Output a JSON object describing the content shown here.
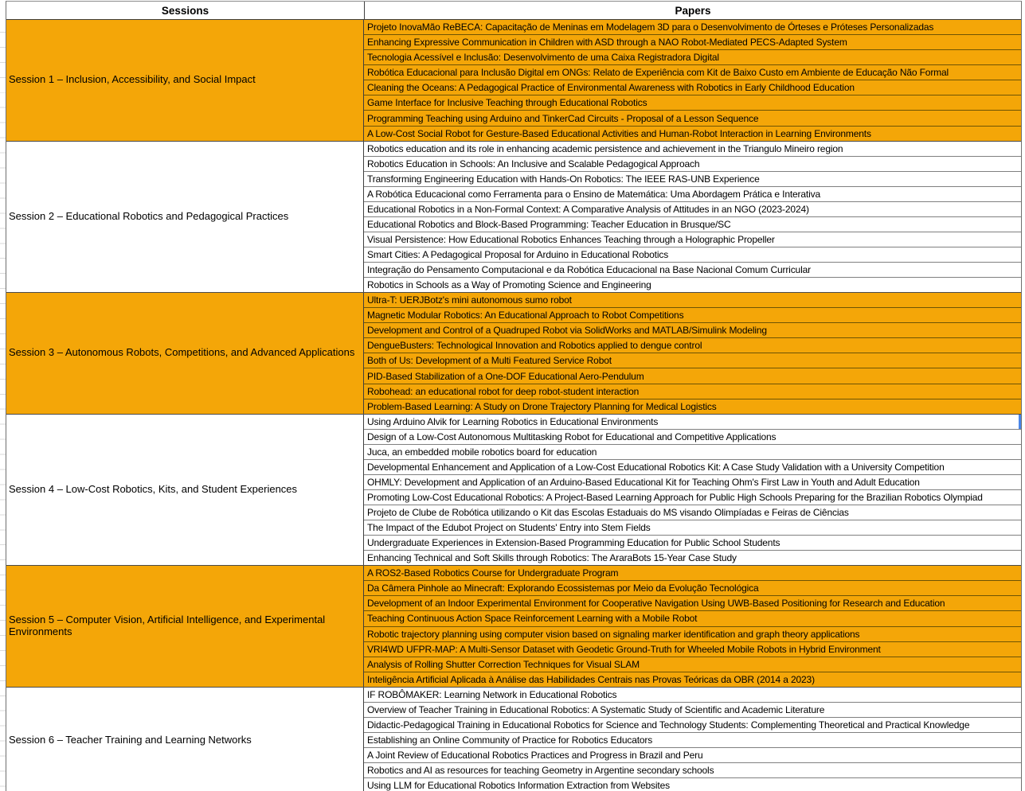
{
  "header": {
    "sessions_label": "Sessions",
    "papers_label": "Papers"
  },
  "colors": {
    "highlight_orange": "#F4A608",
    "row_border": "#808080",
    "block_border": "#4a4a4a",
    "selection_blue": "#4a86e8"
  },
  "selection": {
    "session_index": 3,
    "paper_index": 0
  },
  "sessions": [
    {
      "name": "Session 1 – Inclusion, Accessibility, and Social Impact",
      "highlighted": true,
      "papers": [
        "Projeto InovaMão ReBECA: Capacitação de Meninas em Modelagem 3D para o Desenvolvimento de Órteses e Próteses Personalizadas",
        "Enhancing Expressive Communication in Children with ASD through a NAO Robot-Mediated PECS-Adapted System",
        "Tecnologia Acessível e Inclusão: Desenvolvimento de uma Caixa Registradora Digital",
        "Robótica Educacional para Inclusão Digital em ONGs: Relato de Experiência com Kit de Baixo Custo em Ambiente de Educação Não Formal",
        "Cleaning the Oceans: A Pedagogical Practice of Environmental Awareness with Robotics in Early Childhood Education",
        "Game Interface for Inclusive Teaching through Educational Robotics",
        "Programming Teaching using Arduino and TinkerCad Circuits - Proposal of a Lesson Sequence",
        "A Low-Cost Social Robot for Gesture-Based Educational Activities and Human-Robot Interaction in Learning Environments"
      ]
    },
    {
      "name": "Session 2 – Educational Robotics and Pedagogical Practices",
      "highlighted": false,
      "papers": [
        "Robotics education and its role in enhancing academic persistence and achievement in the Triangulo Mineiro region",
        "Robotics Education in Schools: An Inclusive and Scalable Pedagogical Approach",
        "Transforming Engineering Education with Hands-On Robotics: The IEEE RAS-UNB Experience",
        "A Robótica Educacional como Ferramenta para o Ensino de Matemática: Uma Abordagem Prática e Interativa",
        "Educational Robotics in a Non-Formal Context: A Comparative Analysis of Attitudes in an NGO (2023-2024)",
        "Educational Robotics and Block-Based Programming: Teacher Education in Brusque/SC",
        "Visual Persistence: How Educational Robotics Enhances Teaching through a Holographic Propeller",
        "Smart Cities: A Pedagogical Proposal for Arduino in Educational Robotics",
        "Integração do Pensamento Computacional e da Robótica Educacional na Base Nacional Comum Curricular",
        "Robotics in Schools as a Way of Promoting Science and Engineering"
      ]
    },
    {
      "name": "Session 3 – Autonomous Robots, Competitions, and Advanced Applications",
      "highlighted": true,
      "papers": [
        "Ultra-T: UERJBotz's mini autonomous sumo robot",
        "Magnetic Modular Robotics: An Educational Approach to Robot Competitions",
        "Development and Control of a Quadruped Robot via SolidWorks and MATLAB/Simulink Modeling",
        "DengueBusters: Technological Innovation and Robotics applied to dengue control",
        "Both of Us: Development of a Multi Featured Service Robot",
        "PID-Based Stabilization of a One-DOF Educational Aero-Pendulum",
        "Robohead: an educational robot for deep robot-student interaction",
        "Problem-Based Learning: A Study on Drone Trajectory Planning for Medical Logistics"
      ]
    },
    {
      "name": "Session 4 – Low-Cost Robotics, Kits, and Student Experiences",
      "highlighted": false,
      "papers": [
        "Using Arduino Alvik for Learning Robotics in Educational Environments",
        "Design of a Low-Cost Autonomous Multitasking Robot for Educational and Competitive Applications",
        "Juca, an embedded mobile robotics board for education",
        "Developmental Enhancement and Application of a Low-Cost Educational Robotics Kit: A Case Study Validation with a University Competition",
        "OHMLY: Development and Application of an Arduino-Based Educational Kit for Teaching Ohm's First Law in Youth and Adult Education",
        "Promoting Low-Cost Educational Robotics: A Project-Based Learning Approach for Public High Schools Preparing for the Brazilian Robotics Olympiad",
        "Projeto de Clube de Robótica utilizando o Kit das Escolas Estaduais do MS visando Olimpíadas e Feiras de Ciências",
        "The Impact of the Edubot Project on Students' Entry into Stem Fields",
        "Undergraduate Experiences in Extension-Based Programming Education for Public School Students",
        "Enhancing Technical and Soft Skills through Robotics: The AraraBots 15-Year Case Study"
      ]
    },
    {
      "name": "Session 5 – Computer Vision, Artificial Intelligence, and Experimental Environments",
      "highlighted": true,
      "papers": [
        "A ROS2-Based Robotics Course for Undergraduate Program",
        "Da Câmera Pinhole ao Minecraft: Explorando Ecossistemas por Meio da Evolução Tecnológica",
        "Development of an Indoor Experimental Environment for Cooperative Navigation Using UWB-Based Positioning for Research and Education",
        "Teaching Continuous Action Space Reinforcement Learning with a Mobile Robot",
        "Robotic trajectory planning using computer vision based on signaling marker identification and graph theory applications",
        "VRI4WD UFPR-MAP: A Multi-Sensor Dataset with Geodetic Ground-Truth for Wheeled Mobile Robots in Hybrid Environment",
        "Analysis of Rolling Shutter Correction Techniques for Visual SLAM",
        "Inteligência Artificial Aplicada à Análise das Habilidades Centrais nas Provas Teóricas da OBR (2014 a 2023)"
      ]
    },
    {
      "name": "Session 6 – Teacher Training and Learning Networks",
      "highlighted": false,
      "papers": [
        "IF ROBÔMAKER: Learning Network in Educational Robotics",
        "Overview of Teacher Training in Educational Robotics: A Systematic Study of Scientific and Academic Literature",
        "Didactic-Pedagogical Training in Educational Robotics for Science and Technology Students: Complementing Theoretical and Practical Knowledge",
        "Establishing an Online Community of Practice for Robotics Educators",
        "A Joint Review of Educational Robotics Practices and Progress in Brazil and Peru",
        "Robotics and AI as resources for teaching Geometry in Argentine secondary schools",
        "Using LLM for Educational Robotics Information Extraction from Websites"
      ]
    }
  ]
}
